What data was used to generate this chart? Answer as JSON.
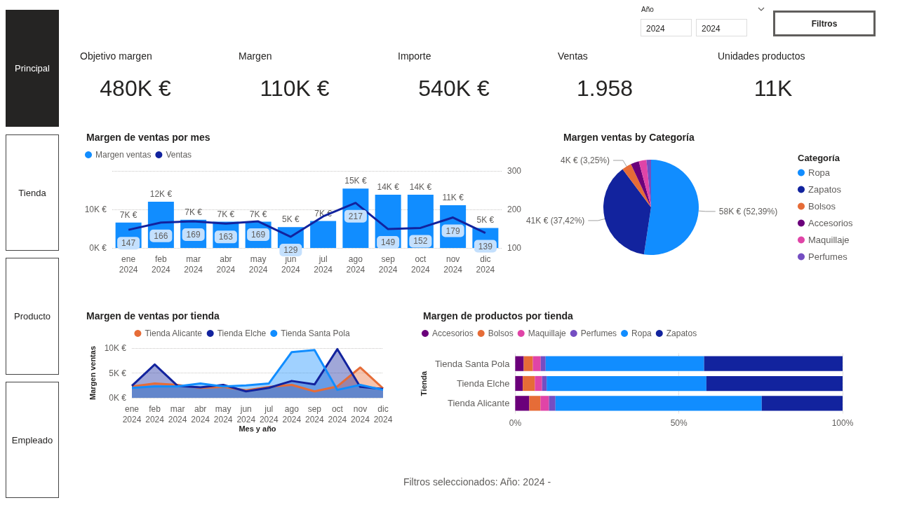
{
  "chart_data": [
    {
      "type": "other",
      "categories": [
        "Principal",
        "Tienda",
        "Producto",
        "Empleado"
      ],
      "annotations": [
        "Año",
        "2024",
        "2024",
        "Filtros",
        "Filtros seleccionados: Año: 2024 -"
      ]
    },
    {
      "type": "other",
      "categories": [
        "Objetivo margen",
        "Margen",
        "Importe",
        "Ventas",
        "Unidades productos"
      ],
      "value_labels": [
        "480K €",
        "110K €",
        "540K €",
        "1.958",
        "11K"
      ]
    },
    {
      "type": "bar",
      "title": "Margen de ventas por mes",
      "categories": [
        "ene 2024",
        "feb 2024",
        "mar 2024",
        "abr 2024",
        "may 2024",
        "jun 2024",
        "jul 2024",
        "ago 2024",
        "sep 2024",
        "oct 2024",
        "nov 2024",
        "dic 2024"
      ],
      "series": [
        {
          "name": "Margen ventas",
          "type": "bar",
          "color": "#118dff",
          "values": [
            6600,
            12000,
            7300,
            6800,
            6800,
            5400,
            7000,
            15400,
            13800,
            13800,
            11100,
            5200
          ],
          "value_labels": [
            "7K €",
            "12K €",
            "7K €",
            "7K €",
            "7K €",
            "5K €",
            "7K €",
            "15K €",
            "14K €",
            "14K €",
            "11K €",
            "5K €"
          ]
        },
        {
          "name": "Ventas",
          "type": "line",
          "axis": "y2",
          "color": "#12239e",
          "values": [
            147,
            166,
            169,
            163,
            169,
            129,
            182,
            217,
            149,
            152,
            179,
            139
          ],
          "value_labels": [
            "147",
            "166",
            "169",
            "163",
            "169",
            "129",
            null,
            "217",
            "149",
            "152",
            "179",
            "139"
          ]
        }
      ],
      "ylim": [
        0,
        20000
      ],
      "yticks": [
        {
          "value": 0,
          "label": "0K €"
        },
        {
          "value": 10000,
          "label": "10K €"
        }
      ],
      "y2lim": [
        100,
        300
      ],
      "y2ticks": [
        100,
        200,
        300
      ],
      "grid": "y",
      "legend": "top left",
      "marker": "none"
    },
    {
      "type": "pie",
      "title": "Margen ventas by Categoría",
      "legend_title": "Categoría",
      "categories": [
        "Ropa",
        "Zapatos",
        "Bolsos",
        "Accesorios",
        "Maquillaje",
        "Perfumes"
      ],
      "values": [
        52.39,
        37.42,
        3.25,
        2.8,
        2.6,
        1.54
      ],
      "colors": [
        "#118dff",
        "#12239e",
        "#e66c37",
        "#6b007b",
        "#e044a7",
        "#744ec2"
      ],
      "value_labels": [
        "58K € (52,39%)",
        "41K € (37,42%)",
        "4K € (3,25%)",
        null,
        null,
        null
      ],
      "legend": "right"
    },
    {
      "type": "area",
      "title": "Margen de ventas por tienda",
      "xlabel": "Mes y año",
      "ylabel": "Margen ventas",
      "categories": [
        "ene 2024",
        "feb 2024",
        "mar 2024",
        "abr 2024",
        "may 2024",
        "jun 2024",
        "jul 2024",
        "ago 2024",
        "sep 2024",
        "oct 2024",
        "nov 2024",
        "dic 2024"
      ],
      "series": [
        {
          "name": "Tienda Alicante",
          "color": "#e66c37",
          "values": [
            2300,
            2900,
            2600,
            2000,
            2200,
            1500,
            2200,
            2600,
            1300,
            2300,
            6100,
            1900
          ]
        },
        {
          "name": "Tienda Elche",
          "color": "#12239e",
          "values": [
            2400,
            6700,
            2400,
            2100,
            2600,
            1300,
            2000,
            3400,
            2700,
            9800,
            2200,
            1800
          ]
        },
        {
          "name": "Tienda Santa Pola",
          "color": "#118dff",
          "values": [
            2000,
            2300,
            2300,
            2900,
            2300,
            2500,
            2900,
            9200,
            9600,
            1600,
            2600,
            1600
          ]
        }
      ],
      "ylim": [
        0,
        10000
      ],
      "yticks": [
        {
          "value": 0,
          "label": "0K €"
        },
        {
          "value": 5000,
          "label": "5K €"
        },
        {
          "value": 10000,
          "label": "10K €"
        }
      ],
      "grid": "y",
      "legend": "top",
      "marker": "none"
    },
    {
      "type": "bar",
      "title": "Margen de productos por tienda",
      "ylabel": "Tienda",
      "orientation": "horizontal",
      "stacked": true,
      "categories": [
        "Tienda Santa Pola",
        "Tienda Elche",
        "Tienda Alicante"
      ],
      "series": [
        {
          "name": "Accesorios",
          "color": "#6b007b",
          "values": [
            2.6,
            2.3,
            4.3
          ]
        },
        {
          "name": "Bolsos",
          "color": "#e66c37",
          "values": [
            2.8,
            3.7,
            3.4
          ]
        },
        {
          "name": "Maquillaje",
          "color": "#e044a7",
          "values": [
            2.4,
            2.2,
            2.6
          ]
        },
        {
          "name": "Perfumes",
          "color": "#744ec2",
          "values": [
            1.5,
            1.4,
            2.0
          ]
        },
        {
          "name": "Ropa",
          "color": "#118dff",
          "values": [
            48.4,
            48.8,
            63.0
          ]
        },
        {
          "name": "Zapatos",
          "color": "#12239e",
          "values": [
            42.3,
            41.6,
            24.7
          ]
        }
      ],
      "xlim": [
        0,
        100
      ],
      "xticks": [
        {
          "value": 0,
          "label": "0%"
        },
        {
          "value": 50,
          "label": "50%"
        },
        {
          "value": 100,
          "label": "100%"
        }
      ],
      "grid": "x",
      "legend": "top left"
    }
  ]
}
